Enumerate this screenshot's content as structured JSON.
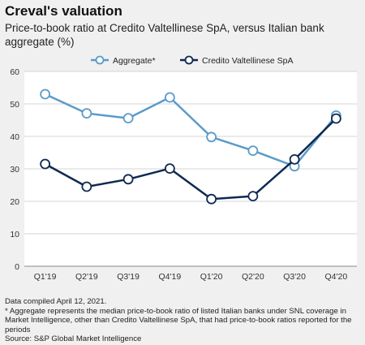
{
  "header": {
    "title": "Creval's valuation",
    "subtitle": "Price-to-book ratio at Credito Valtellinese SpA, versus Italian bank aggregate (%)"
  },
  "chart_data": {
    "type": "line",
    "categories": [
      "Q1'19",
      "Q2'19",
      "Q3'19",
      "Q4'19",
      "Q1'20",
      "Q2'20",
      "Q3'20",
      "Q4'20"
    ],
    "ylim": [
      0,
      60
    ],
    "yticks": [
      0,
      10,
      20,
      30,
      40,
      50,
      60
    ],
    "grid": "horizontal",
    "legend_position": "top-center",
    "series": [
      {
        "name": "Aggregate*",
        "color": "#5b9bc9",
        "values": [
          53.0,
          47.1,
          45.6,
          52.0,
          39.8,
          35.6,
          30.8,
          46.4
        ]
      },
      {
        "name": "Credito Valtellinese SpA",
        "color": "#0f2a52",
        "values": [
          31.5,
          24.5,
          26.8,
          30.1,
          20.7,
          21.6,
          32.9,
          45.5
        ]
      }
    ]
  },
  "footer": {
    "line1": "Data compiled April 12, 2021.",
    "line2": "* Aggregate represents the median price-to-book ratio of listed Italian banks under SNL coverage in Market Intelligence, other than Credito Valtellinese SpA, that had price-to-book ratios reported for the periods",
    "line3": "Source: S&P Global Market Intelligence"
  }
}
